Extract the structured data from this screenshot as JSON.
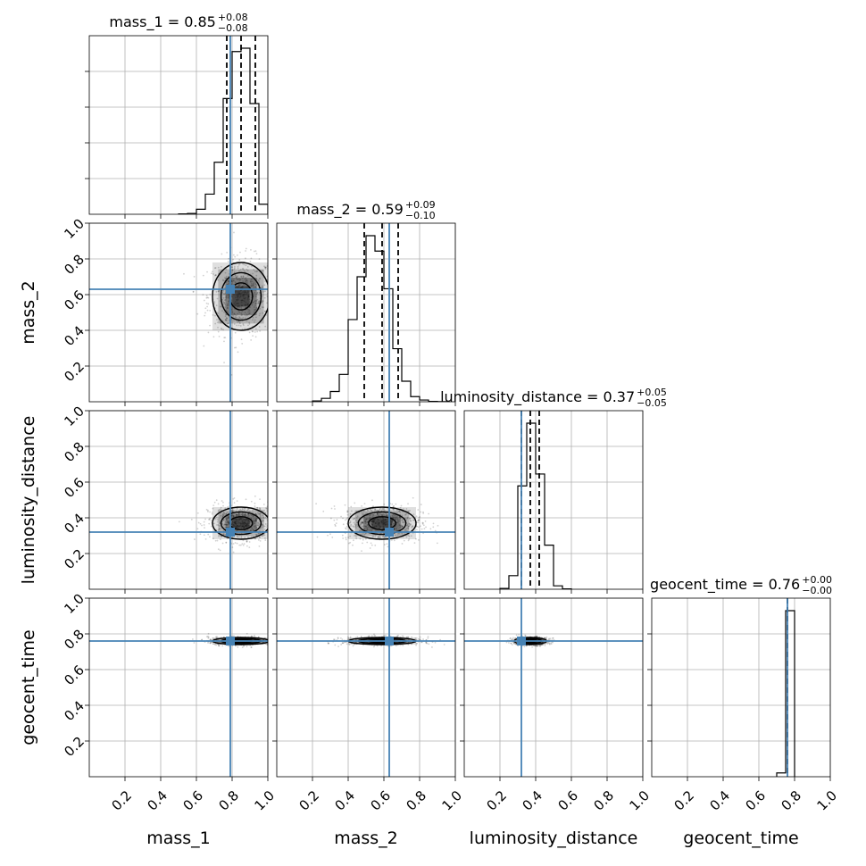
{
  "figure": {
    "type": "corner-plot"
  },
  "chart_data": {
    "type": "corner",
    "parameters": [
      "mass_1",
      "mass_2",
      "luminosity_distance",
      "geocent_time"
    ],
    "axis_range": [
      0,
      1.0
    ],
    "tick_values": [
      0.2,
      0.4,
      0.6,
      0.8,
      1.0
    ],
    "tick_labels": [
      "0.2",
      "0.4",
      "0.6",
      "0.8",
      "1.0"
    ],
    "titles": [
      {
        "base": "mass_1 = 0.85",
        "plus": "+0.08",
        "minus": "−0.08"
      },
      {
        "base": "mass_2 = 0.59",
        "plus": "+0.09",
        "minus": "−0.10"
      },
      {
        "base": "luminosity_distance = 0.37",
        "plus": "+0.05",
        "minus": "−0.05"
      },
      {
        "base": "geocent_time = 0.76",
        "plus": "+0.00",
        "minus": "−0.00"
      }
    ],
    "medians": [
      0.85,
      0.59,
      0.37,
      0.76
    ],
    "quantiles": [
      [
        0.77,
        0.93
      ],
      [
        0.49,
        0.68
      ],
      [
        0.32,
        0.42
      ],
      [
        0.76,
        0.76
      ]
    ],
    "truths": [
      0.79,
      0.63,
      0.32,
      0.76
    ],
    "spreads": [
      0.08,
      0.095,
      0.045,
      0.01
    ],
    "histograms": [
      {
        "edges": [
          0.5,
          0.55,
          0.6,
          0.65,
          0.7,
          0.75,
          0.8,
          0.85,
          0.9,
          0.95,
          1.0
        ],
        "counts": [
          0.002,
          0.005,
          0.03,
          0.12,
          0.31,
          0.69,
          0.97,
          0.99,
          0.66,
          0.06
        ]
      },
      {
        "edges": [
          0.2,
          0.25,
          0.3,
          0.35,
          0.4,
          0.45,
          0.5,
          0.55,
          0.6,
          0.65,
          0.7,
          0.75,
          0.8,
          0.85,
          0.9,
          0.95
        ],
        "counts": [
          0.005,
          0.02,
          0.06,
          0.16,
          0.48,
          0.73,
          0.97,
          0.88,
          0.66,
          0.31,
          0.12,
          0.03,
          0.01,
          0.002,
          0.001
        ]
      },
      {
        "edges": [
          0.2,
          0.25,
          0.3,
          0.35,
          0.4,
          0.45,
          0.5,
          0.55,
          0.6
        ],
        "counts": [
          0.005,
          0.08,
          0.61,
          0.98,
          0.68,
          0.26,
          0.02,
          0.002
        ]
      },
      {
        "edges": [
          0.7,
          0.75,
          0.8
        ],
        "counts": [
          0.02,
          0.88
        ]
      }
    ]
  }
}
